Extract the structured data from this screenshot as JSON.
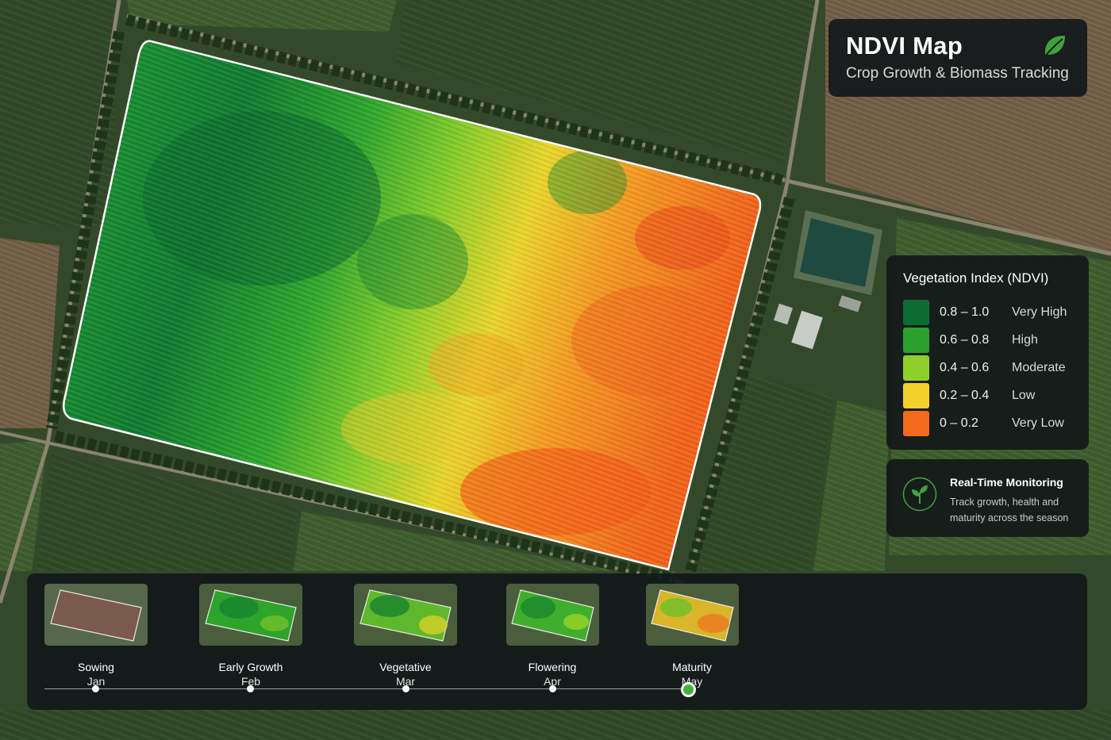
{
  "header": {
    "title": "NDVI Map",
    "subtitle": "Crop Growth & Biomass Tracking",
    "icon": "leaf-icon"
  },
  "legend": {
    "title": "Vegetation Index (NDVI)",
    "items": [
      {
        "range": "0.8 – 1.0",
        "level": "Very High",
        "color": "#0e6b32"
      },
      {
        "range": "0.6 – 0.8",
        "level": "High",
        "color": "#2ca02c"
      },
      {
        "range": "0.4 – 0.6",
        "level": "Moderate",
        "color": "#8fcf2a"
      },
      {
        "range": "0.2 – 0.4",
        "level": "Low",
        "color": "#f2d12a"
      },
      {
        "range": "0 – 0.2",
        "level": "Very Low",
        "color": "#f26a1b"
      }
    ]
  },
  "monitoring": {
    "title": "Real-Time Monitoring",
    "description": "Track growth, health and maturity across the season",
    "icon": "sprout-icon"
  },
  "timeline": {
    "stages": [
      {
        "name": "Sowing",
        "month": "Jan",
        "active": false
      },
      {
        "name": "Early Growth",
        "month": "Feb",
        "active": false
      },
      {
        "name": "Vegetative",
        "month": "Mar",
        "active": false
      },
      {
        "name": "Flowering",
        "month": "Apr",
        "active": false
      },
      {
        "name": "Maturity",
        "month": "May",
        "active": true
      }
    ]
  },
  "colors": {
    "panel": "#12181a",
    "accent": "#44b03a"
  }
}
